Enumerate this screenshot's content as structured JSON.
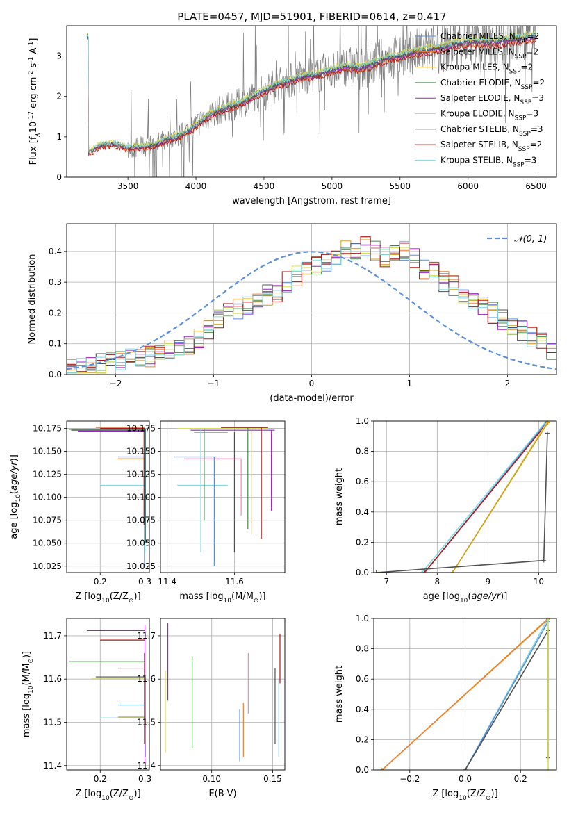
{
  "figure_title": "PLATE=0457, MJD=51901, FIBERID=0614, z=0.417",
  "colors": {
    "cM": "#5b8fd9",
    "sM": "#ef7f32",
    "kM": "#d49a1a",
    "cE": "#4a8a4a",
    "sE": "#a020c8",
    "kE": "#d8e05a",
    "cS": "#505050",
    "sS": "#b01515",
    "kS": "#7fd8e0",
    "data": "#808080",
    "normal": "#5b8fd9",
    "pink": "#ee88bb"
  },
  "chart_data": [
    {
      "id": "spectrum",
      "type": "line",
      "xlabel": "wavelength [Angstrom, rest frame]",
      "ylabel_parts": [
        "Flux [f",
        "λ",
        "10",
        "-17",
        " erg cm",
        "-2",
        " s",
        "-1",
        " A",
        "-1",
        "]"
      ],
      "xlim": [
        3050,
        6650
      ],
      "ylim": [
        0,
        3.75
      ],
      "xticks": [
        3500,
        4000,
        4500,
        5000,
        5500,
        6000,
        6500
      ],
      "yticks": [
        0,
        1,
        2,
        3
      ],
      "legend": [
        {
          "label": "Chabrier MILES, N",
          "sub": "SSP",
          "eq": "=2",
          "color": "cM"
        },
        {
          "label": "Salpeter MILES, N",
          "sub": "SSP",
          "eq": "=2",
          "color": "sM"
        },
        {
          "label": "Kroupa MILES, N",
          "sub": "SSP",
          "eq": "=2",
          "color": "kM"
        },
        {
          "label": "Chabrier ELODIE, N",
          "sub": "SSP",
          "eq": "=2",
          "color": "cE"
        },
        {
          "label": "Salpeter ELODIE, N",
          "sub": "SSP",
          "eq": "=3",
          "color": "sE"
        },
        {
          "label": "Kroupa ELODIE, N",
          "sub": "SSP",
          "eq": "=3",
          "color": "kE"
        },
        {
          "label": "Chabrier STELIB, N",
          "sub": "SSP",
          "eq": "=3",
          "color": "cS"
        },
        {
          "label": "Salpeter STELIB, N",
          "sub": "SSP",
          "eq": "=2",
          "color": "sS"
        },
        {
          "label": "Kroupa STELIB, N",
          "sub": "SSP",
          "eq": "=3",
          "color": "kS"
        }
      ],
      "continuum": [
        [
          3210,
          0.6
        ],
        [
          3300,
          0.8
        ],
        [
          3400,
          0.82
        ],
        [
          3500,
          0.72
        ],
        [
          3600,
          0.75
        ],
        [
          3700,
          0.8
        ],
        [
          3800,
          0.95
        ],
        [
          3900,
          1.05
        ],
        [
          4000,
          1.28
        ],
        [
          4100,
          1.55
        ],
        [
          4200,
          1.7
        ],
        [
          4300,
          1.8
        ],
        [
          4400,
          1.95
        ],
        [
          4500,
          2.15
        ],
        [
          4600,
          2.3
        ],
        [
          4700,
          2.4
        ],
        [
          4800,
          2.5
        ],
        [
          4900,
          2.55
        ],
        [
          5000,
          2.65
        ],
        [
          5100,
          2.75
        ],
        [
          5200,
          2.7
        ],
        [
          5300,
          2.8
        ],
        [
          5400,
          2.95
        ],
        [
          5500,
          3.0
        ],
        [
          5600,
          3.1
        ],
        [
          5700,
          3.15
        ],
        [
          5800,
          3.2
        ],
        [
          5900,
          3.3
        ],
        [
          6000,
          3.35
        ],
        [
          6100,
          3.35
        ],
        [
          6200,
          3.35
        ],
        [
          6300,
          3.4
        ],
        [
          6400,
          3.45
        ],
        [
          6500,
          3.5
        ]
      ],
      "model_offsets": {
        "cM": 0.0,
        "sM": -0.08,
        "kM": 0.05,
        "cE": 0.02,
        "sE": -0.04,
        "kE": 0.1,
        "cS": -0.02,
        "sS": -0.12,
        "kS": 0.06
      },
      "data_range": [
        3200,
        6500
      ],
      "data_noise_start": 3500
    },
    {
      "id": "residuals",
      "type": "step",
      "xlabel": "(data-model)/error",
      "ylabel": "Normed distribution",
      "xlim": [
        -2.5,
        2.5
      ],
      "ylim": [
        0,
        0.49
      ],
      "xticks": [
        -2,
        -1,
        0,
        1,
        2
      ],
      "yticks": [
        0.0,
        0.1,
        0.2,
        0.3,
        0.4
      ],
      "bin_width": 0.1,
      "legend_label": "𝒩(0, 1)",
      "series_base": [
        0.02,
        0.025,
        0.03,
        0.035,
        0.04,
        0.045,
        0.05,
        0.055,
        0.06,
        0.07,
        0.08,
        0.09,
        0.1,
        0.12,
        0.15,
        0.18,
        0.2,
        0.21,
        0.22,
        0.24,
        0.26,
        0.27,
        0.3,
        0.32,
        0.34,
        0.36,
        0.37,
        0.38,
        0.4,
        0.41,
        0.42,
        0.4,
        0.38,
        0.39,
        0.4,
        0.38,
        0.34,
        0.33,
        0.3,
        0.29,
        0.26,
        0.24,
        0.22,
        0.2,
        0.18,
        0.16,
        0.14,
        0.12,
        0.1,
        0.08
      ]
    },
    {
      "id": "age_vs_Z",
      "type": "errorbar",
      "xlabel_parts": [
        "Z [log",
        "10",
        "(Z/Z",
        "⊙",
        ")]"
      ],
      "ylabel_parts": [
        "age  [log",
        "10",
        "(",
        "age/yr",
        ")]"
      ],
      "xlim": [
        0.125,
        0.31
      ],
      "ylim": [
        10.018,
        10.183
      ],
      "xticks": [
        0.2,
        0.3
      ],
      "yticks": [
        10.025,
        10.05,
        10.075,
        10.1,
        10.125,
        10.15,
        10.175
      ],
      "hlines": [
        {
          "x0": 0.13,
          "x1": 0.3,
          "y": 10.174,
          "c": "cE"
        },
        {
          "x0": 0.135,
          "x1": 0.3,
          "y": 10.173,
          "c": "cS"
        },
        {
          "x0": 0.15,
          "x1": 0.3,
          "y": 10.172,
          "c": "sE"
        },
        {
          "x0": 0.2,
          "x1": 0.3,
          "y": 10.175,
          "c": "sS"
        },
        {
          "x0": 0.19,
          "x1": 0.3,
          "y": 10.176,
          "c": "sM"
        },
        {
          "x0": 0.24,
          "x1": 0.3,
          "y": 10.144,
          "c": "cM"
        },
        {
          "x0": 0.24,
          "x1": 0.3,
          "y": 10.142,
          "c": "sM"
        },
        {
          "x0": 0.2,
          "x1": 0.3,
          "y": 10.113,
          "c": "kS"
        }
      ],
      "vlines": [
        {
          "x": 0.299,
          "y0": 10.025,
          "y1": 10.144,
          "c": "cM"
        },
        {
          "x": 0.3,
          "y0": 10.04,
          "y1": 10.176,
          "c": "kS"
        },
        {
          "x": 0.301,
          "y0": 10.05,
          "y1": 10.174,
          "c": "cS"
        },
        {
          "x": 0.298,
          "y0": 10.07,
          "y1": 10.175,
          "c": "sS"
        }
      ]
    },
    {
      "id": "age_vs_mass",
      "type": "errorbar",
      "xlabel_parts": [
        "mass [log",
        "10",
        "(M/M",
        "⊙",
        ")]"
      ],
      "xlim": [
        11.38,
        11.75
      ],
      "ylim": [
        10.018,
        10.183
      ],
      "xticks": [
        11.4,
        11.6
      ],
      "yticks": [
        10.025,
        10.05,
        10.075,
        10.1,
        10.125,
        10.15,
        10.175
      ],
      "hlines": [
        {
          "x0": 11.43,
          "x1": 11.7,
          "y": 10.175,
          "c": "kE"
        },
        {
          "x0": 11.47,
          "x1": 11.72,
          "y": 10.173,
          "c": "sE"
        },
        {
          "x0": 11.48,
          "x1": 11.58,
          "y": 10.171,
          "c": "cS"
        },
        {
          "x0": 11.56,
          "x1": 11.7,
          "y": 10.176,
          "c": "sS"
        },
        {
          "x0": 11.42,
          "x1": 11.55,
          "y": 10.144,
          "c": "cM"
        },
        {
          "x0": 11.45,
          "x1": 11.62,
          "y": 10.142,
          "c": "pink"
        },
        {
          "x0": 11.43,
          "x1": 11.58,
          "y": 10.113,
          "c": "kS"
        }
      ],
      "vlines": [
        {
          "x": 11.5,
          "y0": 10.04,
          "y1": 10.175,
          "c": "kS"
        },
        {
          "x": 11.51,
          "y0": 10.075,
          "y1": 10.175,
          "c": "cE"
        },
        {
          "x": 11.54,
          "y0": 10.025,
          "y1": 10.144,
          "c": "cM"
        },
        {
          "x": 11.6,
          "y0": 10.04,
          "y1": 10.171,
          "c": "cS"
        },
        {
          "x": 11.62,
          "y0": 10.08,
          "y1": 10.142,
          "c": "pink"
        },
        {
          "x": 11.64,
          "y0": 10.065,
          "y1": 10.176,
          "c": "cE"
        },
        {
          "x": 11.65,
          "y0": 10.06,
          "y1": 10.173,
          "c": "kM"
        },
        {
          "x": 11.68,
          "y0": 10.055,
          "y1": 10.176,
          "c": "sS"
        },
        {
          "x": 11.71,
          "y0": 10.085,
          "y1": 10.173,
          "c": "sE"
        }
      ]
    },
    {
      "id": "massweight_vs_age",
      "type": "line",
      "xlabel_parts": [
        "age  [log",
        "10",
        "(",
        "age/yr",
        ")]"
      ],
      "ylabel": "mass weight",
      "xlim": [
        6.75,
        10.35
      ],
      "ylim": [
        0,
        1.0
      ],
      "xticks": [
        7,
        8,
        9,
        10
      ],
      "yticks": [
        0.0,
        0.2,
        0.4,
        0.6,
        0.8,
        1.0
      ],
      "lines": [
        {
          "c": "kS",
          "pts": [
            [
              7.7,
              0
            ],
            [
              10.15,
              1.0
            ]
          ]
        },
        {
          "c": "cM",
          "pts": [
            [
              7.75,
              0
            ],
            [
              10.17,
              1.0
            ]
          ]
        },
        {
          "c": "sS",
          "pts": [
            [
              7.75,
              0
            ],
            [
              10.17,
              0.99
            ]
          ]
        },
        {
          "c": "kE",
          "pts": [
            [
              6.85,
              0
            ],
            [
              8.3,
              0
            ],
            [
              10.18,
              1.0
            ]
          ]
        },
        {
          "c": "kM",
          "pts": [
            [
              8.3,
              0
            ],
            [
              10.18,
              0.99
            ]
          ]
        },
        {
          "c": "cS",
          "pts": [
            [
              6.8,
              0
            ],
            [
              10.1,
              0.08
            ],
            [
              10.17,
              0.92
            ]
          ]
        }
      ]
    },
    {
      "id": "mass_vs_Z",
      "type": "errorbar",
      "xlabel_parts": [
        "Z [log",
        "10",
        "(Z/Z",
        "⊙",
        ")]"
      ],
      "ylabel_parts": [
        "mass [log",
        "10",
        "(M/M",
        "⊙",
        ")]"
      ],
      "xlim": [
        0.125,
        0.31
      ],
      "ylim": [
        11.39,
        11.74
      ],
      "xticks": [
        0.2,
        0.3
      ],
      "yticks": [
        11.4,
        11.5,
        11.6,
        11.7
      ],
      "hlines": [
        {
          "x0": 0.17,
          "x1": 0.3,
          "y": 11.712,
          "c": "sE"
        },
        {
          "x0": 0.2,
          "x1": 0.3,
          "y": 11.69,
          "c": "sS"
        },
        {
          "x0": 0.13,
          "x1": 0.3,
          "y": 11.64,
          "c": "cE"
        },
        {
          "x0": 0.24,
          "x1": 0.3,
          "y": 11.625,
          "c": "pink"
        },
        {
          "x0": 0.19,
          "x1": 0.3,
          "y": 11.605,
          "c": "cS"
        },
        {
          "x0": 0.18,
          "x1": 0.3,
          "y": 11.602,
          "c": "kE"
        },
        {
          "x0": 0.24,
          "x1": 0.3,
          "y": 11.54,
          "c": "cM"
        },
        {
          "x0": 0.24,
          "x1": 0.3,
          "y": 11.512,
          "c": "kM"
        },
        {
          "x0": 0.2,
          "x1": 0.3,
          "y": 11.51,
          "c": "kS"
        }
      ],
      "vlines": [
        {
          "x": 0.3,
          "y0": 11.405,
          "y1": 11.725,
          "c": "sE"
        },
        {
          "x": 0.299,
          "y0": 11.45,
          "y1": 11.66,
          "c": "sS"
        },
        {
          "x": 0.301,
          "y0": 11.42,
          "y1": 11.6,
          "c": "cM"
        }
      ]
    },
    {
      "id": "mass_vs_EBV",
      "type": "errorbar",
      "xlabel": "E(B-V)",
      "xlim": [
        0.058,
        0.16
      ],
      "ylim": [
        11.39,
        11.74
      ],
      "xticks": [
        0.1,
        0.15
      ],
      "yticks": [
        11.4,
        11.5,
        11.6,
        11.7
      ],
      "vlines": [
        {
          "x": 0.062,
          "y0": 11.43,
          "y1": 11.62,
          "c": "kE"
        },
        {
          "x": 0.064,
          "y0": 11.55,
          "y1": 11.73,
          "c": "sE"
        },
        {
          "x": 0.084,
          "y0": 11.44,
          "y1": 11.65,
          "c": "cE"
        },
        {
          "x": 0.123,
          "y0": 11.41,
          "y1": 11.53,
          "c": "cM"
        },
        {
          "x": 0.126,
          "y0": 11.42,
          "y1": 11.545,
          "c": "sM"
        },
        {
          "x": 0.13,
          "y0": 11.52,
          "y1": 11.66,
          "c": "pink"
        },
        {
          "x": 0.152,
          "y0": 11.45,
          "y1": 11.625,
          "c": "cS"
        },
        {
          "x": 0.155,
          "y0": 11.42,
          "y1": 11.6,
          "c": "kS"
        },
        {
          "x": 0.156,
          "y0": 11.59,
          "y1": 11.705,
          "c": "sS"
        }
      ]
    },
    {
      "id": "massweight_vs_Z",
      "type": "line",
      "xlabel_parts": [
        "Z [log",
        "10",
        "(Z/Z",
        "⊙",
        ")]"
      ],
      "ylabel": "mass weight",
      "xlim": [
        -0.33,
        0.33
      ],
      "ylim": [
        0,
        1.0
      ],
      "xticks": [
        -0.2,
        0.0,
        0.2
      ],
      "yticks": [
        0.0,
        0.2,
        0.4,
        0.6,
        0.8,
        1.0
      ],
      "lines": [
        {
          "c": "kM",
          "pts": [
            [
              -0.3,
              0
            ],
            [
              0.3,
              1.0
            ]
          ]
        },
        {
          "c": "sM",
          "pts": [
            [
              -0.3,
              0
            ],
            [
              0.3,
              0.995
            ]
          ]
        },
        {
          "c": "kS",
          "pts": [
            [
              0.0,
              0
            ],
            [
              0.3,
              1.0
            ]
          ]
        },
        {
          "c": "cM",
          "pts": [
            [
              0.0,
              0
            ],
            [
              0.3,
              0.98
            ]
          ]
        },
        {
          "c": "cS",
          "pts": [
            [
              0.0,
              0
            ],
            [
              0.3,
              0.92
            ],
            [
              0.3,
              0.08
            ]
          ]
        },
        {
          "c": "kE",
          "pts": [
            [
              0.3,
              0
            ],
            [
              0.3,
              1.0
            ]
          ]
        }
      ]
    }
  ]
}
